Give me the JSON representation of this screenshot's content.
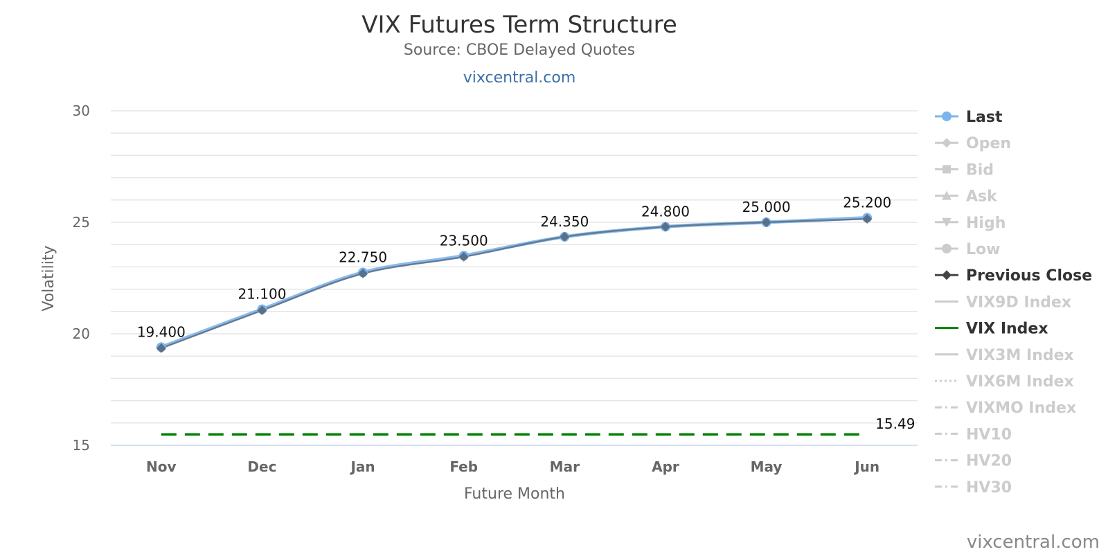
{
  "chart_data": {
    "type": "line",
    "title": "VIX Futures Term Structure",
    "subtitle": "Source: CBOE Delayed Quotes",
    "site_link": "vixcentral.com",
    "credit": "vixcentral.com",
    "xlabel": "Future Month",
    "ylabel": "Volatility",
    "categories": [
      "Nov",
      "Dec",
      "Jan",
      "Feb",
      "Mar",
      "Apr",
      "May",
      "Jun"
    ],
    "ylim": [
      15,
      30
    ],
    "yticks": [
      "15",
      "20",
      "25",
      "30"
    ],
    "grid": true,
    "legend_position": "right",
    "series": [
      {
        "name": "Last",
        "values": [
          19.4,
          21.1,
          22.75,
          23.5,
          24.35,
          24.8,
          25.0,
          25.2
        ],
        "labels": [
          "19.400",
          "21.100",
          "22.750",
          "23.500",
          "24.350",
          "24.800",
          "25.000",
          "25.200"
        ],
        "color": "#7cb5ec",
        "marker": "circle",
        "visible": true
      },
      {
        "name": "Previous Close",
        "values": [
          19.35,
          21.05,
          22.7,
          23.45,
          24.35,
          24.8,
          25.0,
          25.15
        ],
        "color": "#434348",
        "marker": "diamond",
        "visible": true
      },
      {
        "name": "VIX Index",
        "values": [
          15.49,
          15.49,
          15.49,
          15.49,
          15.49,
          15.49,
          15.49,
          15.49
        ],
        "end_label": "15.49",
        "color": "#008000",
        "dash": "dash",
        "visible": true
      }
    ],
    "legend": [
      {
        "name": "Last",
        "symbol": "circle",
        "active": true,
        "color": "#7cb5ec"
      },
      {
        "name": "Open",
        "symbol": "diamond",
        "active": false
      },
      {
        "name": "Bid",
        "symbol": "square",
        "active": false
      },
      {
        "name": "Ask",
        "symbol": "triangle",
        "active": false
      },
      {
        "name": "High",
        "symbol": "triangle-down",
        "active": false
      },
      {
        "name": "Low",
        "symbol": "circle",
        "active": false
      },
      {
        "name": "Previous Close",
        "symbol": "diamond",
        "active": true,
        "color": "#434348"
      },
      {
        "name": "VIX9D Index",
        "symbol": "line",
        "active": false
      },
      {
        "name": "VIX Index",
        "symbol": "line",
        "active": true,
        "color": "#008000"
      },
      {
        "name": "VIX3M Index",
        "symbol": "line",
        "active": false
      },
      {
        "name": "VIX6M Index",
        "symbol": "dot",
        "active": false
      },
      {
        "name": "VIXMO Index",
        "symbol": "dashdot",
        "active": false
      },
      {
        "name": "HV10",
        "symbol": "dashdot",
        "active": false
      },
      {
        "name": "HV20",
        "symbol": "dashdot",
        "active": false
      },
      {
        "name": "HV30",
        "symbol": "dashdot",
        "active": false
      }
    ]
  }
}
